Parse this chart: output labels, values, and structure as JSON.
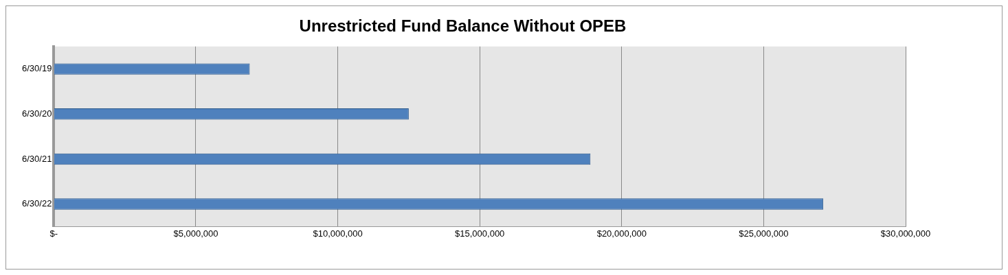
{
  "chart_data": {
    "type": "bar",
    "orientation": "horizontal",
    "title": "Unrestricted Fund Balance Without OPEB",
    "categories": [
      "6/30/19",
      "6/30/20",
      "6/30/21",
      "6/30/22"
    ],
    "values": [
      6900000,
      12500000,
      18900000,
      27100000
    ],
    "color": "#4f81bd",
    "xlim": [
      0,
      30000000
    ],
    "xticks": [
      {
        "value": 0,
        "label": "$-"
      },
      {
        "value": 5000000,
        "label": "$5,000,000"
      },
      {
        "value": 10000000,
        "label": "$10,000,000"
      },
      {
        "value": 15000000,
        "label": "$15,000,000"
      },
      {
        "value": 20000000,
        "label": "$20,000,000"
      },
      {
        "value": 25000000,
        "label": "$25,000,000"
      },
      {
        "value": 30000000,
        "label": "$30,000,000"
      }
    ],
    "grid": "x",
    "legend": false
  }
}
